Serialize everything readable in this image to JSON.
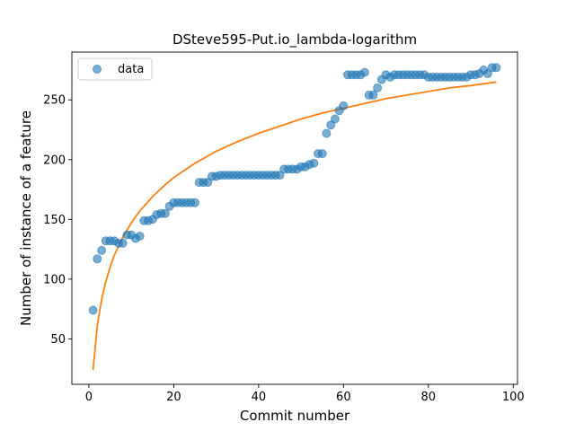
{
  "chart_data": {
    "type": "scatter",
    "title": "DSteve595-Put.io_lambda-logarithm",
    "xlabel": "Commit number",
    "ylabel": "Number of instance of a feature",
    "xlim": [
      -4,
      101
    ],
    "ylim": [
      12,
      290
    ],
    "xticks": [
      0,
      20,
      40,
      60,
      80,
      100
    ],
    "yticks": [
      50,
      100,
      150,
      200,
      250
    ],
    "legend": {
      "position": "top-left",
      "entries": [
        "data"
      ]
    },
    "colors": {
      "data": "#1f77b4",
      "fit": "#ff7f0e"
    },
    "series": [
      {
        "name": "data",
        "kind": "scatter",
        "x": [
          1,
          2,
          3,
          4,
          5,
          6,
          7,
          8,
          9,
          10,
          11,
          12,
          13,
          14,
          15,
          16,
          17,
          18,
          19,
          20,
          21,
          22,
          23,
          24,
          25,
          26,
          27,
          28,
          29,
          30,
          31,
          32,
          33,
          34,
          35,
          36,
          37,
          38,
          39,
          40,
          41,
          42,
          43,
          44,
          45,
          46,
          47,
          48,
          49,
          50,
          51,
          52,
          53,
          54,
          55,
          56,
          57,
          58,
          59,
          60,
          61,
          62,
          63,
          64,
          65,
          66,
          67,
          68,
          69,
          70,
          71,
          72,
          73,
          74,
          75,
          76,
          77,
          78,
          79,
          80,
          81,
          82,
          83,
          84,
          85,
          86,
          87,
          88,
          89,
          90,
          91,
          92,
          93,
          94,
          95,
          96
        ],
        "y": [
          74,
          117,
          124,
          132,
          132,
          132,
          130,
          130,
          137,
          137,
          134,
          136,
          149,
          149,
          150,
          154,
          155,
          155,
          161,
          164,
          164,
          164,
          164,
          164,
          164,
          181,
          181,
          181,
          186,
          186,
          187,
          187,
          187,
          187,
          187,
          187,
          187,
          187,
          187,
          187,
          187,
          187,
          187,
          187,
          187,
          192,
          192,
          192,
          192,
          194,
          194,
          196,
          197,
          205,
          205,
          222,
          229,
          234,
          241,
          245,
          271,
          271,
          271,
          271,
          273,
          254,
          254,
          260,
          267,
          271,
          269,
          271,
          271,
          271,
          271,
          271,
          271,
          271,
          271,
          269,
          269,
          269,
          269,
          269,
          269,
          269,
          269,
          269,
          269,
          271,
          271,
          272,
          275,
          272,
          277,
          277
        ]
      },
      {
        "name": "",
        "kind": "line",
        "x": [
          1,
          2,
          3,
          4,
          5,
          6,
          8,
          10,
          12,
          15,
          18,
          20,
          25,
          30,
          35,
          40,
          45,
          50,
          55,
          60,
          65,
          70,
          75,
          80,
          85,
          90,
          96
        ],
        "y": [
          24,
          61,
          83,
          98,
          110,
          120,
          135,
          147,
          157,
          169,
          179,
          185,
          197,
          207,
          215,
          222,
          228,
          234,
          239,
          243,
          247,
          251,
          254,
          257,
          260,
          262,
          265
        ]
      }
    ]
  }
}
